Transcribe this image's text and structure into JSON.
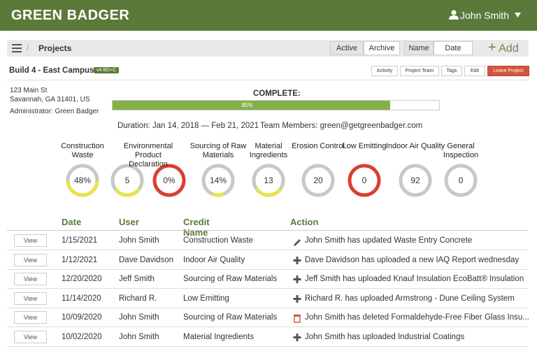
{
  "header": {
    "logo": "GREEN BADGER",
    "user": "John Smith"
  },
  "toolbar": {
    "title": "Projects",
    "filters": [
      "Active",
      "Archive"
    ],
    "sorts": [
      "Name",
      "Date"
    ],
    "add": "Add"
  },
  "project": {
    "name": "Build 4 - East Campus",
    "badge": "v4 BD+C",
    "actions": [
      "Activity",
      "Project Team",
      "Tags",
      "Edit",
      "Leave Project"
    ],
    "address": [
      "123 Main St",
      "Savannah, GA 31401, US"
    ],
    "administrator": "Administrator: Green Badger",
    "complete_label": "COMPLETE:",
    "progress": 85,
    "progress_label": "85%",
    "duration": "Duration: Jan 14, 2018 — Feb 21, 2021",
    "team": "Team Members: green@getgreenbadger.com"
  },
  "gauges": [
    {
      "label": "Construction Waste",
      "rings": [
        {
          "value": "48%",
          "color": "#e8e34a",
          "portion": 0.48
        }
      ]
    },
    {
      "label": "Environmental Product Declaration",
      "rings": [
        {
          "value": "5",
          "color": "#e8e34a",
          "portion": 0.3
        },
        {
          "value": "0%",
          "color": "#d94030",
          "portion": 1
        }
      ]
    },
    {
      "label": "Sourcing of Raw Materials",
      "rings": [
        {
          "value": "14%",
          "color": "#e8e34a",
          "portion": 0.14
        }
      ]
    },
    {
      "label": "Material Ingredients",
      "rings": [
        {
          "value": "13",
          "color": "#e8e34a",
          "portion": 0.3
        }
      ]
    },
    {
      "label": "Erosion Control",
      "rings": [
        {
          "value": "20",
          "color": "#bbbbbb",
          "portion": 0
        }
      ]
    },
    {
      "label": "Low Emitting",
      "rings": [
        {
          "value": "0",
          "color": "#d94030",
          "portion": 1
        }
      ]
    },
    {
      "label": "Indoor Air Quality",
      "rings": [
        {
          "value": "92",
          "color": "#bbbbbb",
          "portion": 0
        }
      ]
    },
    {
      "label": "General Inspection",
      "rings": [
        {
          "value": "0",
          "color": "#bbbbbb",
          "portion": 0
        }
      ]
    }
  ],
  "table": {
    "columns": [
      "Date",
      "User",
      "Credit Name",
      "Action"
    ],
    "button": "View",
    "rows": [
      {
        "date": "1/15/2021",
        "user": "John Smith",
        "credit": "Construction Waste",
        "icon": "edit",
        "action": "John Smith has updated Waste Entry Concrete"
      },
      {
        "date": "1/12/2021",
        "user": "Dave Davidson",
        "credit": "Indoor Air Quality",
        "icon": "plus",
        "action": "Dave Davidson has uploaded a new IAQ Report wednesday"
      },
      {
        "date": "12/20/2020",
        "user": "Jeff Smith",
        "credit": "Sourcing of Raw Materials",
        "icon": "plus",
        "action": "Jeff Smith has uploaded Knauf Insulation EcoBatt® Insulation"
      },
      {
        "date": "11/14/2020",
        "user": "Richard R.",
        "credit": "Low Emitting",
        "icon": "plus",
        "action": "Richard R. has uploaded Armstrong - Dune Ceiling System"
      },
      {
        "date": "10/09/2020",
        "user": "John Smith",
        "credit": "Sourcing of Raw Materials",
        "icon": "trash",
        "action": "John Smith has deleted Formaldehyde-Free Fiber Glass Insu..."
      },
      {
        "date": "10/02/2020",
        "user": "John Smith",
        "credit": "Material Ingredients",
        "icon": "plus",
        "action": "John Smith has uploaded Industrial Coatings"
      }
    ]
  }
}
